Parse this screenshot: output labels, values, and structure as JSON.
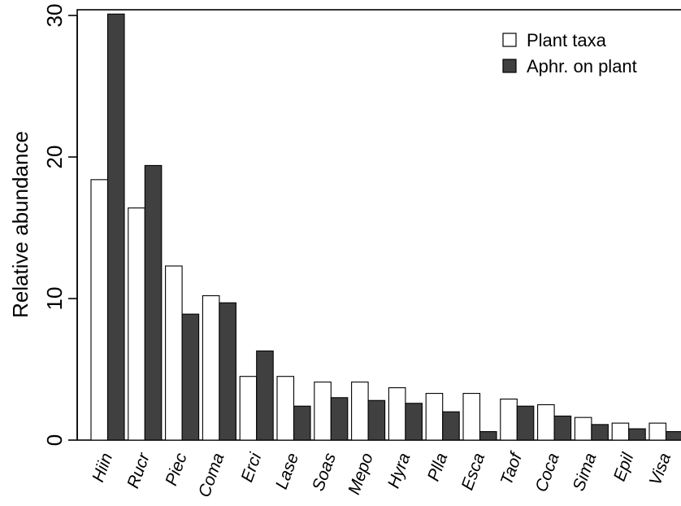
{
  "chart_data": {
    "type": "bar",
    "title": "",
    "xlabel": "",
    "ylabel": "Relative abundance",
    "ylim": [
      0,
      30
    ],
    "yticks": [
      0,
      10,
      20,
      30
    ],
    "grid": false,
    "legend_position": "top-right",
    "categories": [
      "Hiin",
      "Rucr",
      "Piec",
      "Coma",
      "Erci",
      "Lase",
      "Soas",
      "Mepo",
      "Hyra",
      "Plla",
      "Esca",
      "Taof",
      "Coca",
      "Sima",
      "Epil",
      "Visa"
    ],
    "series": [
      {
        "name": "Plant taxa",
        "color": "#ffffff",
        "values": [
          18.4,
          16.4,
          12.3,
          10.2,
          4.5,
          4.5,
          4.1,
          4.1,
          3.7,
          3.3,
          3.3,
          2.9,
          2.5,
          1.6,
          1.2,
          1.2
        ]
      },
      {
        "name": "Aphr. on plant",
        "color": "#404040",
        "values": [
          30.1,
          19.4,
          8.9,
          9.7,
          6.3,
          2.4,
          3.0,
          2.8,
          2.6,
          2.0,
          0.6,
          2.4,
          1.7,
          1.1,
          0.8,
          0.6
        ]
      }
    ]
  }
}
